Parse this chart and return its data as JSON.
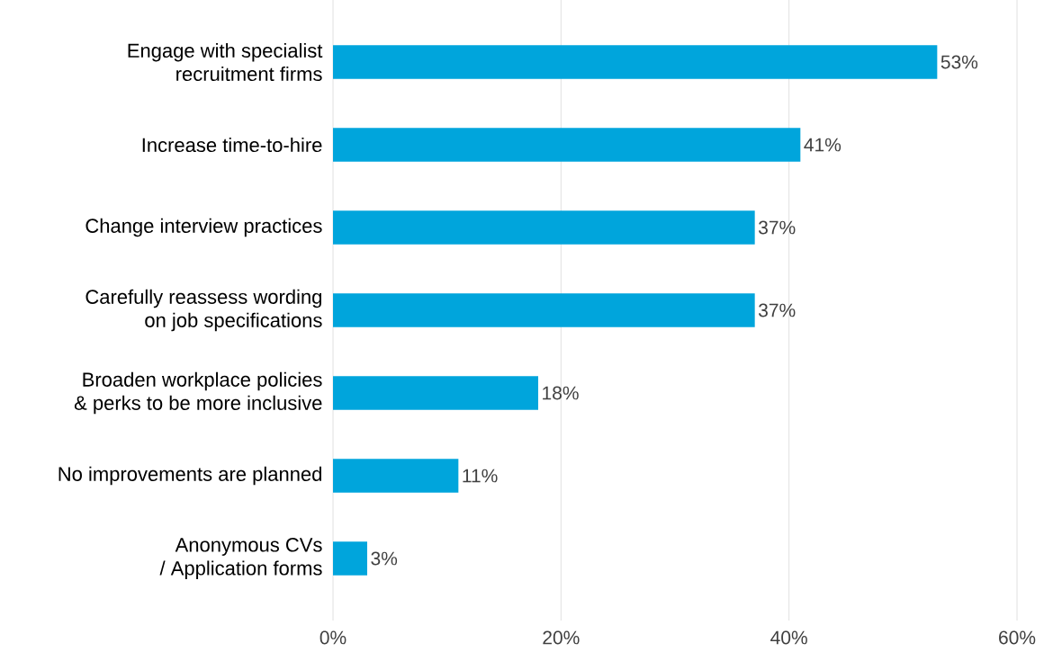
{
  "chart_data": {
    "type": "bar",
    "orientation": "horizontal",
    "categories": [
      "Engage with specialist\nrecruitment firms",
      "Increase time-to-hire",
      "Change interview practices",
      "Carefully reassess wording\non job specifications",
      "Broaden workplace policies\n& perks to be more inclusive",
      "No improvements are planned",
      "Anonymous CVs\n/ Application forms"
    ],
    "values": [
      53,
      41,
      37,
      37,
      18,
      11,
      3
    ],
    "value_labels": [
      "53%",
      "41%",
      "37%",
      "37%",
      "18%",
      "11%",
      "3%"
    ],
    "color": "#00a5dc",
    "xlim": [
      0,
      60
    ],
    "xticks": [
      {
        "value": 0,
        "label": "0%"
      },
      {
        "value": 20,
        "label": "20%"
      },
      {
        "value": 40,
        "label": "40%"
      },
      {
        "value": 60,
        "label": "60%"
      }
    ],
    "grid": "x"
  }
}
